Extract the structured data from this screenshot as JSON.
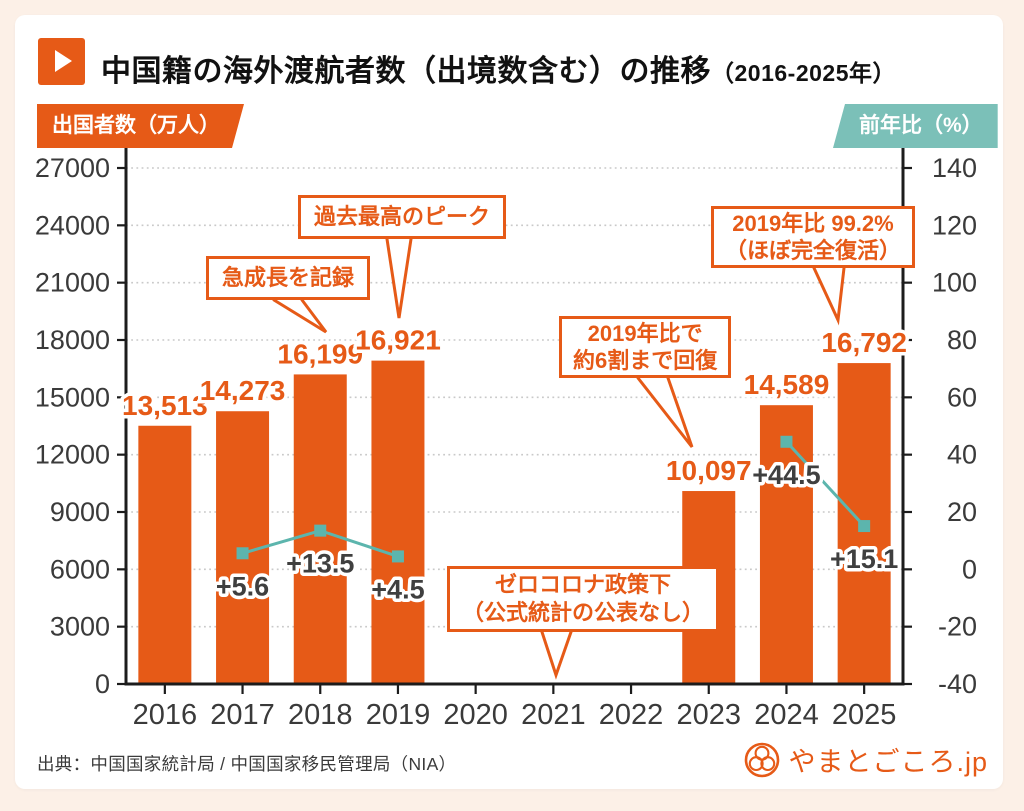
{
  "header": {
    "title_main": "中国籍の海外渡航者数（出境数含む）の推移",
    "title_period": "（2016-2025年）"
  },
  "axis_badges": {
    "left": "出国者数（万人）",
    "right": "前年比（%）"
  },
  "chart_data": {
    "type": "bar+line",
    "title": "中国籍の海外渡航者数（出境数含む）の推移（2016-2025年）",
    "categories": [
      "2016",
      "2017",
      "2018",
      "2019",
      "2020",
      "2021",
      "2022",
      "2023",
      "2024",
      "2025"
    ],
    "series": [
      {
        "name": "出国者数（万人）",
        "type": "bar",
        "color": "#e65a17",
        "values": [
          13513,
          14273,
          16199,
          16921,
          null,
          null,
          null,
          10097,
          14589,
          16792
        ]
      },
      {
        "name": "前年比（%）",
        "type": "line",
        "color": "#5cb5ad",
        "values": [
          null,
          5.6,
          13.5,
          4.5,
          null,
          null,
          null,
          null,
          44.5,
          15.1
        ]
      }
    ],
    "left_axis": {
      "label": "出国者数（万人）",
      "min": 0,
      "max": 27000,
      "step": 3000
    },
    "right_axis": {
      "label": "前年比（%）",
      "min": -40,
      "max": 140,
      "step": 20
    },
    "grid": "dotted horizontal, legend none"
  },
  "annotations": {
    "growth": "急成長を記録",
    "peak": "過去最高のピーク",
    "recovery60": "2019年比で\n約6割まで回復",
    "recovery99": "2019年比 99.2%\n（ほぼ完全復活）",
    "zerocovid": "ゼロコロナ政策下\n（公式統計の公表なし）"
  },
  "footer": {
    "source": "出典：中国国家統計局 / 中国国家移民管理局（NIA）",
    "logo_text": "やまとごころ.jp"
  },
  "colors": {
    "bar": "#e65a17",
    "accent": "#e65a17",
    "line": "#5cb5ad",
    "badge_right": "#7bc0b8",
    "background": "#fcf0e7",
    "grid": "#c9c9c9",
    "axis": "#1c1c1c",
    "tick_text": "#3a3a3a",
    "pct_text": "#3f3f3f"
  }
}
